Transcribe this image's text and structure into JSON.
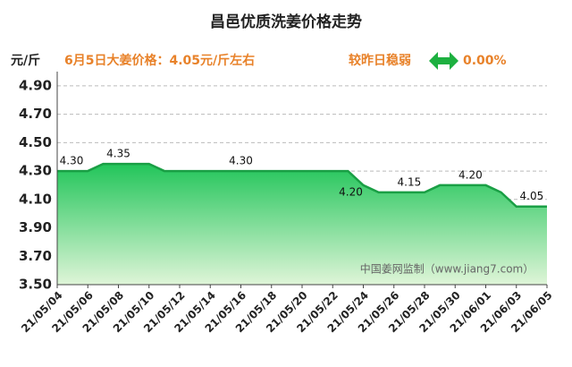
{
  "chart_data": {
    "type": "area",
    "title": "昌邑优质洗姜价格走势",
    "y_unit": "元/斤",
    "price_note": "6月5日大姜价格：4.05元/斤左右",
    "change_label": "较昨日稳弱",
    "change_value": "0.00%",
    "watermark": "中国姜网监制（www.jiang7.com）",
    "categories": [
      "21/05/04",
      null,
      "21/05/06",
      null,
      "21/05/08",
      null,
      "21/05/10",
      null,
      "21/05/12",
      null,
      "21/05/14",
      null,
      "21/05/16",
      null,
      "21/05/18",
      null,
      "21/05/20",
      null,
      "21/05/22",
      null,
      "21/05/24",
      null,
      "21/05/26",
      null,
      "21/05/28",
      null,
      "21/05/30",
      null,
      "21/06/01",
      null,
      "21/06/03",
      null,
      "21/06/05"
    ],
    "values": [
      4.3,
      4.3,
      4.3,
      4.35,
      4.35,
      4.35,
      4.35,
      4.3,
      4.3,
      4.3,
      4.3,
      4.3,
      4.3,
      4.3,
      4.3,
      4.3,
      4.3,
      4.3,
      4.3,
      4.3,
      4.2,
      4.15,
      4.15,
      4.15,
      4.15,
      4.2,
      4.2,
      4.2,
      4.2,
      4.15,
      4.05,
      4.05,
      4.05
    ],
    "value_labels": [
      "4.30",
      null,
      null,
      null,
      "4.35",
      null,
      null,
      null,
      null,
      null,
      null,
      null,
      "4.30",
      null,
      null,
      null,
      null,
      null,
      null,
      null,
      "4.20",
      null,
      null,
      "4.15",
      null,
      null,
      null,
      "4.20",
      null,
      null,
      null,
      "4.05",
      null
    ],
    "color": "#1a9f45",
    "ylim": [
      3.5,
      5.0
    ],
    "yticks": [
      {
        "value": 3.5,
        "label": "3.50"
      },
      {
        "value": 3.7,
        "label": "3.70"
      },
      {
        "value": 3.9,
        "label": "3.90"
      },
      {
        "value": 4.1,
        "label": "4.10"
      },
      {
        "value": 4.3,
        "label": "4.30"
      },
      {
        "value": 4.5,
        "label": "4.50"
      },
      {
        "value": 4.7,
        "label": "4.70"
      },
      {
        "value": 4.9,
        "label": "4.90"
      }
    ],
    "grid": true
  }
}
